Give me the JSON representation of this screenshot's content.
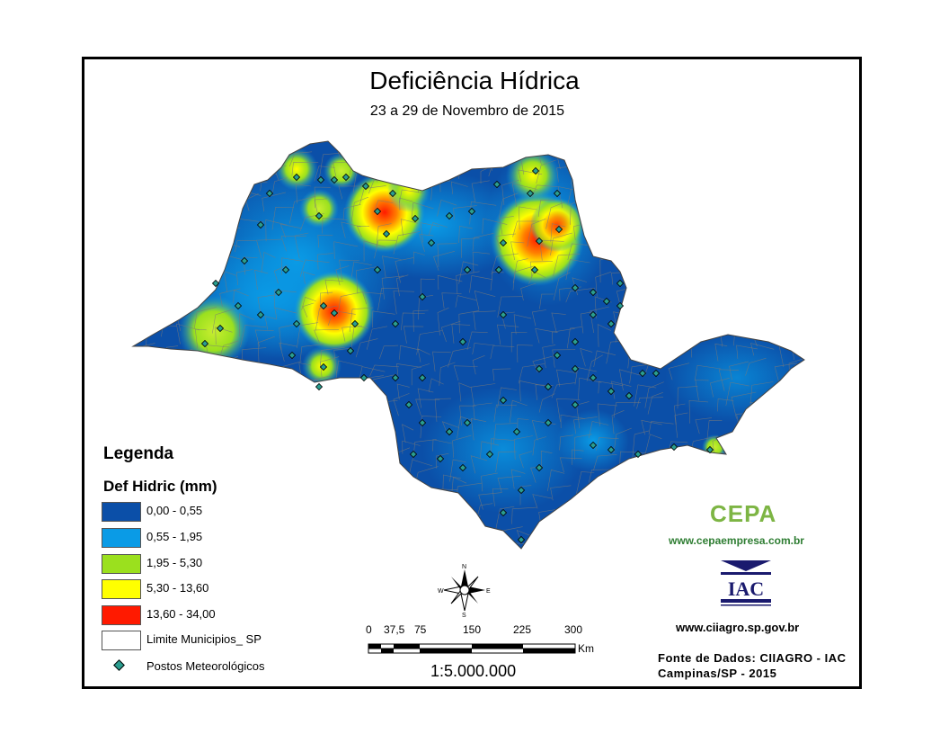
{
  "header": {
    "title": "Deficiência Hídrica",
    "subtitle": "23 a 29 de Novembro de 2015"
  },
  "legend": {
    "title": "Legenda",
    "subtitle": "Def Hidric (mm)",
    "classes": [
      {
        "label": "0,00 - 0,55",
        "color": "#0b4fa8"
      },
      {
        "label": "0,55 - 1,95",
        "color": "#0a9be6"
      },
      {
        "label": "1,95 - 5,30",
        "color": "#9be01e"
      },
      {
        "label": "5,30 - 13,60",
        "color": "#ffff00"
      },
      {
        "label": "13,60 - 34,00",
        "color": "#ff1a00"
      }
    ],
    "boundary_label": "Limite Municipios_ SP",
    "stations_label": "Postos Meteorológicos"
  },
  "scale_bar": {
    "ticks": [
      "0",
      "37,5",
      "75",
      "150",
      "225",
      "300"
    ],
    "unit": "Km",
    "ratio": "1:5.000.000"
  },
  "compass": {
    "n": "N",
    "s": "S",
    "e": "E",
    "w": "W"
  },
  "credits": {
    "cepa_logo": "CEPA",
    "cepa_url": "www.cepaempresa.com.br",
    "iac_logo": "IAC",
    "iac_url": "www.ciiagro.sp.gov.br",
    "source_line1": "Fonte de Dados: CIIAGRO - IAC",
    "source_line2": "Campinas/SP - 2015"
  },
  "map_colors": {
    "base": "#0b4fa8",
    "mid": "#0a9be6",
    "green": "#9be01e",
    "yellow": "#ffff00",
    "red": "#ff1a00",
    "boundary": "#7a7a7a",
    "station": "#2a9d8f"
  }
}
